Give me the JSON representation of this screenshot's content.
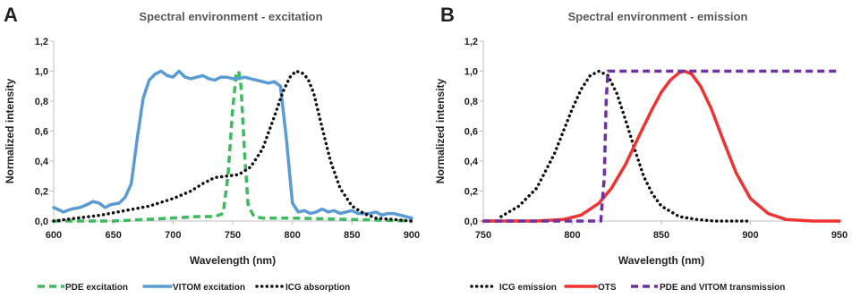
{
  "chart_data": [
    {
      "type": "line",
      "panel": "A",
      "title": "Spectral environment - excitation",
      "xlabel": "Wavelength (nm)",
      "ylabel": "Normalized intensity",
      "xlim": [
        600,
        900
      ],
      "ylim": [
        0,
        1.2
      ],
      "xticks": [
        "600",
        "650",
        "700",
        "750",
        "800",
        "850",
        "900"
      ],
      "xtick_values": [
        600,
        650,
        700,
        750,
        800,
        850,
        900
      ],
      "yticks": [
        "0,0",
        "0,2",
        "0,4",
        "0,6",
        "0,8",
        "1,0",
        "1,2"
      ],
      "ytick_values": [
        0,
        0.2,
        0.4,
        0.6,
        0.8,
        1.0,
        1.2
      ],
      "grid": false,
      "legend": "bottom",
      "series": [
        {
          "name": "PDE excitation",
          "color": "#3dbb5e",
          "style": "dashed",
          "x": [
            600,
            650,
            700,
            720,
            735,
            742,
            746,
            750,
            753,
            755,
            757,
            760,
            763,
            768,
            775,
            800,
            850,
            900
          ],
          "y": [
            0.0,
            0.0,
            0.02,
            0.03,
            0.03,
            0.05,
            0.3,
            0.75,
            0.98,
            1.0,
            0.9,
            0.45,
            0.1,
            0.03,
            0.02,
            0.02,
            0.01,
            0.0
          ]
        },
        {
          "name": "VITOM excitation",
          "color": "#5b9bd5",
          "style": "solid",
          "x": [
            600,
            603,
            608,
            615,
            622,
            628,
            633,
            638,
            643,
            648,
            655,
            660,
            665,
            670,
            675,
            680,
            685,
            690,
            695,
            700,
            705,
            710,
            715,
            720,
            725,
            730,
            735,
            740,
            745,
            750,
            755,
            760,
            765,
            770,
            775,
            780,
            785,
            790,
            795,
            800,
            805,
            810,
            815,
            820,
            825,
            830,
            835,
            840,
            845,
            850,
            855,
            860,
            865,
            870,
            875,
            880,
            885,
            890,
            895,
            900
          ],
          "y": [
            0.09,
            0.08,
            0.06,
            0.08,
            0.09,
            0.11,
            0.13,
            0.12,
            0.09,
            0.11,
            0.12,
            0.16,
            0.25,
            0.55,
            0.82,
            0.94,
            0.98,
            1.0,
            0.97,
            0.96,
            1.0,
            0.96,
            0.95,
            0.96,
            0.97,
            0.95,
            0.94,
            0.96,
            0.96,
            0.95,
            0.95,
            0.96,
            0.95,
            0.94,
            0.93,
            0.92,
            0.93,
            0.9,
            0.55,
            0.12,
            0.06,
            0.07,
            0.05,
            0.06,
            0.08,
            0.06,
            0.07,
            0.05,
            0.06,
            0.07,
            0.05,
            0.05,
            0.05,
            0.06,
            0.04,
            0.05,
            0.05,
            0.04,
            0.03,
            0.02
          ]
        },
        {
          "name": "ICG absorption",
          "color": "#111111",
          "style": "dotted",
          "x": [
            600,
            620,
            640,
            660,
            680,
            700,
            715,
            725,
            735,
            745,
            755,
            765,
            775,
            785,
            792,
            798,
            803,
            808,
            813,
            818,
            825,
            832,
            840,
            850,
            860,
            870,
            885,
            900
          ],
          "y": [
            0.0,
            0.02,
            0.04,
            0.07,
            0.1,
            0.15,
            0.2,
            0.25,
            0.29,
            0.3,
            0.31,
            0.36,
            0.48,
            0.7,
            0.86,
            0.96,
            1.0,
            0.99,
            0.95,
            0.85,
            0.62,
            0.4,
            0.22,
            0.1,
            0.05,
            0.02,
            0.01,
            0.0
          ]
        }
      ]
    },
    {
      "type": "line",
      "panel": "B",
      "title": "Spectral environment - emission",
      "xlabel": "Wavelength (nm)",
      "ylabel": "Normalized intensity",
      "xlim": [
        750,
        950
      ],
      "ylim": [
        0,
        1.2
      ],
      "xticks": [
        "750",
        "800",
        "850",
        "900",
        "950"
      ],
      "xtick_values": [
        750,
        800,
        850,
        900,
        950
      ],
      "yticks": [
        "0,0",
        "0,2",
        "0,4",
        "0,6",
        "0,8",
        "1,0",
        "1,2"
      ],
      "ytick_values": [
        0,
        0.2,
        0.4,
        0.6,
        0.8,
        1.0,
        1.2
      ],
      "grid": false,
      "legend": "bottom",
      "series": [
        {
          "name": "ICG emission",
          "color": "#111111",
          "style": "dotted",
          "x": [
            760,
            770,
            780,
            790,
            800,
            805,
            810,
            815,
            820,
            825,
            830,
            835,
            840,
            845,
            850,
            860,
            870,
            880,
            890,
            900
          ],
          "y": [
            0.03,
            0.1,
            0.22,
            0.45,
            0.75,
            0.88,
            0.97,
            1.0,
            0.97,
            0.85,
            0.67,
            0.48,
            0.3,
            0.18,
            0.1,
            0.03,
            0.01,
            0.0,
            0.0,
            0.0
          ]
        },
        {
          "name": "OTS",
          "color": "#ee3333",
          "style": "solid",
          "x": [
            750,
            780,
            795,
            805,
            815,
            822,
            830,
            838,
            845,
            850,
            855,
            860,
            863,
            867,
            872,
            878,
            885,
            892,
            900,
            910,
            920,
            935,
            950
          ],
          "y": [
            0.0,
            0.0,
            0.01,
            0.04,
            0.12,
            0.22,
            0.38,
            0.58,
            0.75,
            0.86,
            0.94,
            0.99,
            1.0,
            0.98,
            0.9,
            0.75,
            0.53,
            0.32,
            0.15,
            0.05,
            0.01,
            0.0,
            0.0
          ]
        },
        {
          "name": "PDE and VITOM transmission",
          "color": "#7030a0",
          "style": "dashed",
          "x": [
            750,
            816,
            818,
            819,
            820,
            830,
            950
          ],
          "y": [
            0.0,
            0.0,
            0.3,
            0.8,
            1.0,
            1.0,
            1.0
          ]
        }
      ]
    }
  ]
}
